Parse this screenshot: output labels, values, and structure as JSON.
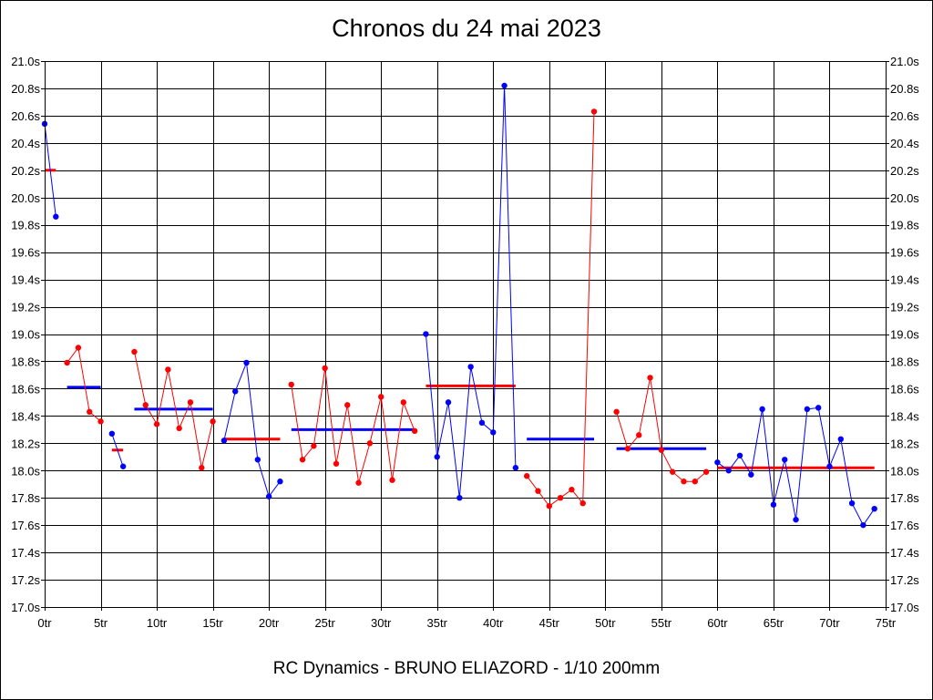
{
  "chart_data": {
    "type": "line",
    "title": "Chronos du 24 mai 2023",
    "footer": "RC Dynamics - BRUNO ELIAZORD - 1/10 200mm",
    "xlim": [
      0,
      75
    ],
    "ylim": [
      17.0,
      21.0
    ],
    "x_ticks": [
      {
        "v": 0,
        "label": "0tr"
      },
      {
        "v": 5,
        "label": "5tr"
      },
      {
        "v": 10,
        "label": "10tr"
      },
      {
        "v": 15,
        "label": "15tr"
      },
      {
        "v": 20,
        "label": "20tr"
      },
      {
        "v": 25,
        "label": "25tr"
      },
      {
        "v": 30,
        "label": "30tr"
      },
      {
        "v": 35,
        "label": "35tr"
      },
      {
        "v": 40,
        "label": "40tr"
      },
      {
        "v": 45,
        "label": "45tr"
      },
      {
        "v": 50,
        "label": "50tr"
      },
      {
        "v": 55,
        "label": "55tr"
      },
      {
        "v": 60,
        "label": "60tr"
      },
      {
        "v": 65,
        "label": "65tr"
      },
      {
        "v": 70,
        "label": "70tr"
      },
      {
        "v": 75,
        "label": "75tr"
      }
    ],
    "y_ticks": [
      {
        "v": 21.0,
        "label": "21.0s"
      },
      {
        "v": 20.8,
        "label": "20.8s"
      },
      {
        "v": 20.6,
        "label": "20.6s"
      },
      {
        "v": 20.4,
        "label": "20.4s"
      },
      {
        "v": 20.2,
        "label": "20.2s"
      },
      {
        "v": 20.0,
        "label": "20.0s"
      },
      {
        "v": 19.8,
        "label": "19.8s"
      },
      {
        "v": 19.6,
        "label": "19.6s"
      },
      {
        "v": 19.4,
        "label": "19.4s"
      },
      {
        "v": 19.2,
        "label": "19.2s"
      },
      {
        "v": 19.0,
        "label": "19.0s"
      },
      {
        "v": 18.8,
        "label": "18.8s"
      },
      {
        "v": 18.6,
        "label": "18.6s"
      },
      {
        "v": 18.4,
        "label": "18.4s"
      },
      {
        "v": 18.2,
        "label": "18.2s"
      },
      {
        "v": 18.0,
        "label": "18.0s"
      },
      {
        "v": 17.8,
        "label": "17.8s"
      },
      {
        "v": 17.6,
        "label": "17.6s"
      },
      {
        "v": 17.4,
        "label": "17.4s"
      },
      {
        "v": 17.2,
        "label": "17.2s"
      },
      {
        "v": 17.0,
        "label": "17.0s"
      }
    ],
    "colors": {
      "blue": "#0000ff",
      "red": "#ff0000",
      "grid": "#000000"
    },
    "series": [
      {
        "name": "s1",
        "color": "blue",
        "x": [
          0,
          1
        ],
        "values": [
          20.54,
          19.86
        ]
      },
      {
        "name": "s2",
        "color": "red",
        "x": [
          2,
          3,
          4,
          5
        ],
        "values": [
          18.79,
          18.9,
          18.43,
          18.36
        ]
      },
      {
        "name": "s3",
        "color": "blue",
        "x": [
          6,
          7
        ],
        "values": [
          18.27,
          18.03
        ]
      },
      {
        "name": "s4",
        "color": "red",
        "x": [
          8,
          9,
          10,
          11,
          12,
          13,
          14,
          15
        ],
        "values": [
          18.87,
          18.48,
          18.34,
          18.74,
          18.31,
          18.5,
          18.02,
          18.36
        ]
      },
      {
        "name": "s5",
        "color": "blue",
        "x": [
          16,
          17,
          18,
          19,
          20,
          21
        ],
        "values": [
          18.22,
          18.58,
          18.79,
          18.08,
          17.81,
          17.92
        ]
      },
      {
        "name": "s6",
        "color": "red",
        "x": [
          22,
          23,
          24,
          25,
          26,
          27,
          28,
          29,
          30,
          31,
          32,
          33
        ],
        "values": [
          18.63,
          18.08,
          18.18,
          18.75,
          18.05,
          18.48,
          17.91,
          18.2,
          18.54,
          17.93,
          18.5,
          18.29
        ]
      },
      {
        "name": "s7",
        "color": "blue",
        "x": [
          34,
          35,
          36,
          37,
          38,
          39,
          40,
          41,
          42
        ],
        "values": [
          19.0,
          18.1,
          18.5,
          17.8,
          18.76,
          18.35,
          18.28,
          20.82,
          18.02
        ]
      },
      {
        "name": "s8",
        "color": "red",
        "x": [
          43,
          44,
          45,
          46,
          47,
          48,
          49
        ],
        "values": [
          17.96,
          17.85,
          17.74,
          17.8,
          17.86,
          17.76,
          20.63
        ]
      },
      {
        "name": "s9",
        "color": "red",
        "x": [
          51,
          52,
          53,
          54,
          55,
          56,
          57,
          58,
          59
        ],
        "values": [
          18.43,
          18.16,
          18.26,
          18.68,
          18.15,
          17.99,
          17.92,
          17.92,
          17.99
        ]
      },
      {
        "name": "s10",
        "color": "blue",
        "x": [
          60,
          61,
          62,
          63,
          64,
          65,
          66,
          67,
          68,
          69,
          70,
          71,
          72,
          73,
          74
        ],
        "values": [
          18.06,
          18.0,
          18.11,
          17.97,
          18.45,
          17.75,
          18.08,
          17.64,
          18.45,
          18.46,
          18.03,
          18.23,
          17.76,
          17.6,
          17.72
        ]
      }
    ],
    "averages": [
      {
        "color": "red",
        "x_start": 0,
        "x_end": 1,
        "value": 20.2
      },
      {
        "color": "blue",
        "x_start": 2,
        "x_end": 5,
        "value": 18.61
      },
      {
        "color": "red",
        "x_start": 6,
        "x_end": 7,
        "value": 18.15
      },
      {
        "color": "blue",
        "x_start": 8,
        "x_end": 15,
        "value": 18.45
      },
      {
        "color": "red",
        "x_start": 16,
        "x_end": 21,
        "value": 18.23
      },
      {
        "color": "blue",
        "x_start": 22,
        "x_end": 33,
        "value": 18.3
      },
      {
        "color": "red",
        "x_start": 34,
        "x_end": 42,
        "value": 18.62
      },
      {
        "color": "blue",
        "x_start": 43,
        "x_end": 49,
        "value": 18.23
      },
      {
        "color": "blue",
        "x_start": 51,
        "x_end": 59,
        "value": 18.16
      },
      {
        "color": "red",
        "x_start": 60,
        "x_end": 74,
        "value": 18.02
      }
    ]
  }
}
